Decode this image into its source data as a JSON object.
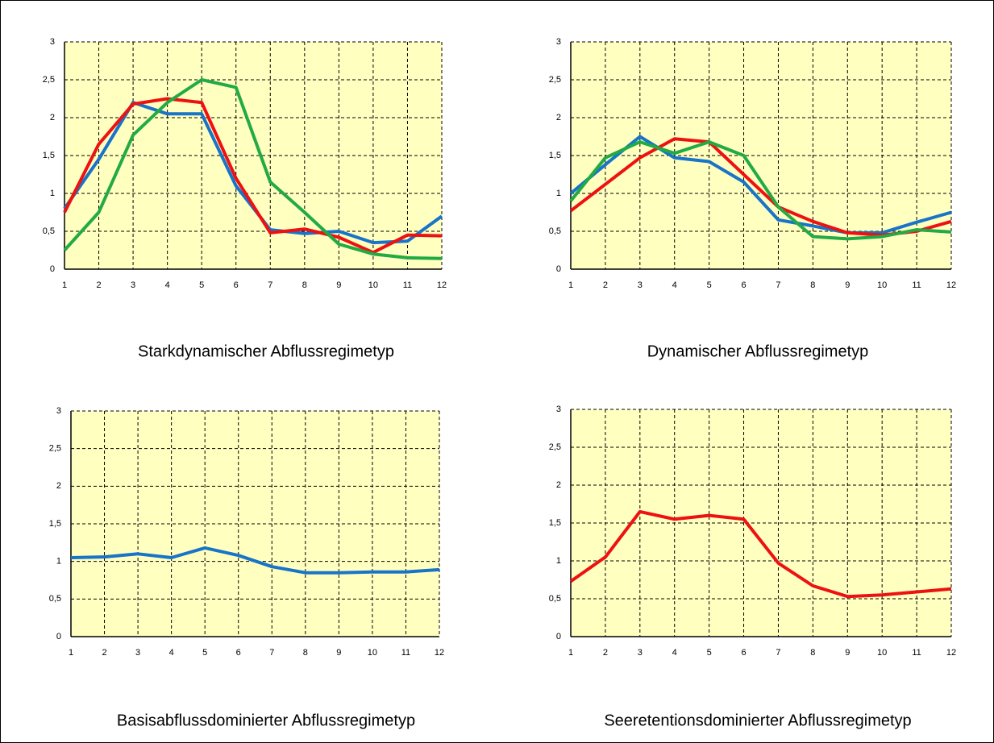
{
  "chart_data": [
    {
      "type": "line",
      "title": "Starkdynamischer Abflussregimetyp",
      "x": [
        1,
        2,
        3,
        4,
        5,
        6,
        7,
        8,
        9,
        10,
        11,
        12
      ],
      "xlim": [
        1,
        12
      ],
      "xticks": [
        1,
        2,
        3,
        4,
        5,
        6,
        7,
        8,
        9,
        10,
        11,
        12
      ],
      "ylim": [
        0,
        3
      ],
      "yticks": [
        0,
        {
          "value": 0.5,
          "label": "0,5"
        },
        1,
        {
          "value": 1.5,
          "label": "1,5"
        },
        2,
        {
          "value": 2.5,
          "label": "2,5"
        },
        3
      ],
      "grid": true,
      "series": [
        {
          "color": "#1874c8",
          "values": [
            0.8,
            1.45,
            2.2,
            2.05,
            2.05,
            1.1,
            0.52,
            0.47,
            0.5,
            0.35,
            0.37,
            0.7
          ]
        },
        {
          "color": "#ee1111",
          "values": [
            0.75,
            1.65,
            2.18,
            2.25,
            2.2,
            1.2,
            0.48,
            0.53,
            0.42,
            0.22,
            0.45,
            0.44
          ]
        },
        {
          "color": "#22aa44",
          "values": [
            0.25,
            0.75,
            1.77,
            2.2,
            2.5,
            2.4,
            1.15,
            0.75,
            0.33,
            0.2,
            0.15,
            0.14
          ]
        }
      ]
    },
    {
      "type": "line",
      "title": "Dynamischer Abflussregimetyp",
      "x": [
        1,
        2,
        3,
        4,
        5,
        6,
        7,
        8,
        9,
        10,
        11,
        12
      ],
      "xlim": [
        1,
        12
      ],
      "xticks": [
        1,
        2,
        3,
        4,
        5,
        6,
        7,
        8,
        9,
        10,
        11,
        12
      ],
      "ylim": [
        0,
        3
      ],
      "yticks": [
        0,
        {
          "value": 0.5,
          "label": "0,5"
        },
        1,
        {
          "value": 1.5,
          "label": "1,5"
        },
        2,
        {
          "value": 2.5,
          "label": "2,5"
        },
        3
      ],
      "grid": true,
      "series": [
        {
          "color": "#1874c8",
          "values": [
            1.0,
            1.38,
            1.75,
            1.47,
            1.42,
            1.15,
            0.65,
            0.57,
            0.48,
            0.48,
            0.62,
            0.75
          ]
        },
        {
          "color": "#ee1111",
          "values": [
            0.77,
            1.12,
            1.47,
            1.72,
            1.68,
            1.25,
            0.82,
            0.63,
            0.48,
            0.45,
            0.5,
            0.63
          ]
        },
        {
          "color": "#22aa44",
          "values": [
            0.9,
            1.47,
            1.68,
            1.53,
            1.68,
            1.5,
            0.82,
            0.43,
            0.4,
            0.43,
            0.52,
            0.49
          ]
        }
      ]
    },
    {
      "type": "line",
      "title": "Basisabflussdominierter Abflussregimetyp",
      "x": [
        1,
        2,
        3,
        4,
        5,
        6,
        7,
        8,
        9,
        10,
        11,
        12
      ],
      "xlim": [
        1,
        12
      ],
      "xticks": [
        1,
        2,
        3,
        4,
        5,
        6,
        7,
        8,
        9,
        10,
        11,
        12
      ],
      "ylim": [
        0,
        3
      ],
      "yticks": [
        0,
        {
          "value": 0.5,
          "label": "0,5"
        },
        1,
        {
          "value": 1.5,
          "label": "1,5"
        },
        2,
        {
          "value": 2.5,
          "label": "2,5"
        },
        3
      ],
      "grid": true,
      "series": [
        {
          "color": "#1874c8",
          "values": [
            1.05,
            1.06,
            1.1,
            1.05,
            1.18,
            1.08,
            0.93,
            0.85,
            0.85,
            0.86,
            0.86,
            0.89
          ]
        }
      ]
    },
    {
      "type": "line",
      "title": "Seeretentionsdominierter Abflussregimetyp",
      "x": [
        1,
        2,
        3,
        4,
        5,
        6,
        7,
        8,
        9,
        10,
        11,
        12
      ],
      "xlim": [
        1,
        12
      ],
      "xticks": [
        1,
        2,
        3,
        4,
        5,
        6,
        7,
        8,
        9,
        10,
        11,
        12
      ],
      "ylim": [
        0,
        3
      ],
      "yticks": [
        0,
        {
          "value": 0.5,
          "label": "0,5"
        },
        1,
        {
          "value": 1.5,
          "label": "1,5"
        },
        2,
        {
          "value": 2.5,
          "label": "2,5"
        },
        3
      ],
      "grid": true,
      "series": [
        {
          "color": "#ee1111",
          "values": [
            0.73,
            1.05,
            1.65,
            1.55,
            1.6,
            1.55,
            0.97,
            0.67,
            0.53,
            0.55,
            0.59,
            0.63
          ]
        }
      ]
    }
  ]
}
